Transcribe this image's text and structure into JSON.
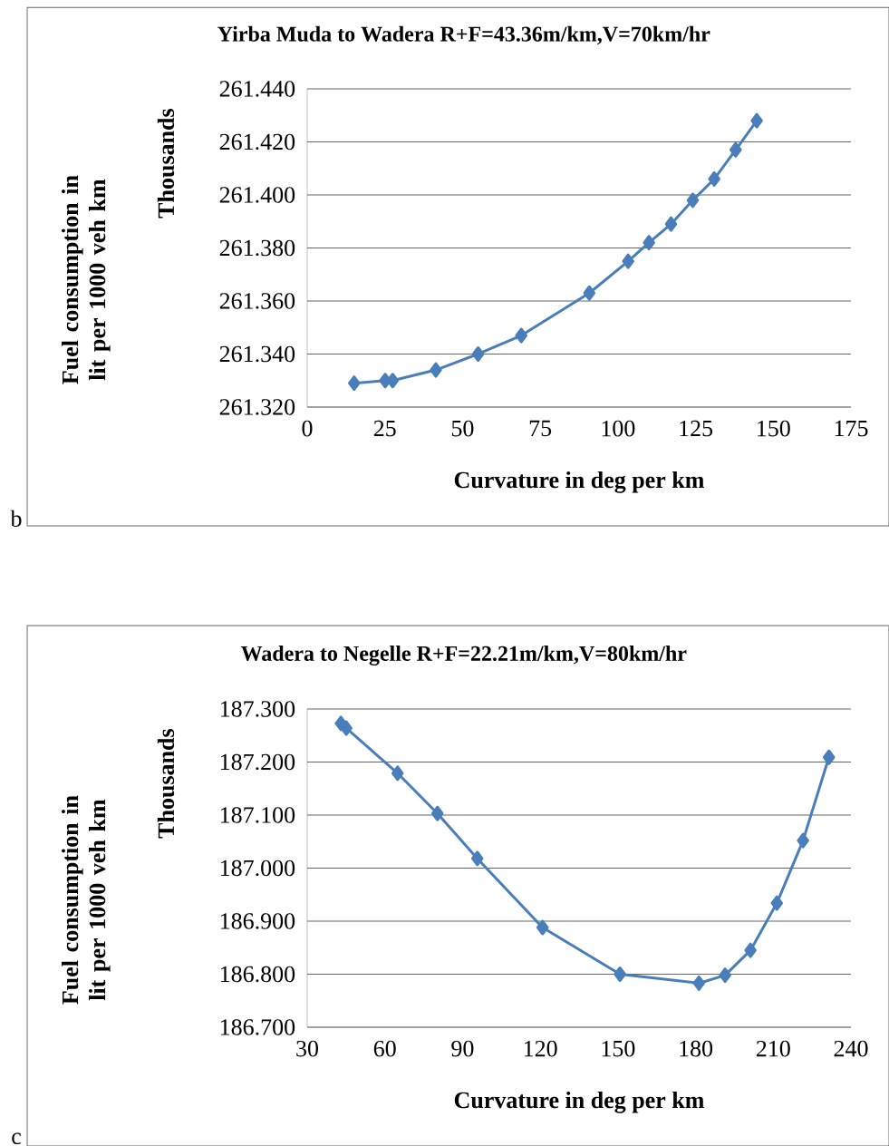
{
  "chart_data": [
    {
      "type": "line",
      "title": "Yirba Muda to Wadera R+F=43.36m/km,V=70km/hr",
      "xlabel": "Curvature in deg per km",
      "ylabel": "Fuel consumption in lit per 1000 veh km",
      "annotations": [
        "Thousands",
        "b"
      ],
      "x": [
        15.1,
        25.1,
        27.5,
        41.4,
        55.0,
        68.9,
        90.8,
        103.3,
        110.0,
        117.1,
        124.1,
        131.0,
        137.9,
        144.7
      ],
      "series": [
        {
          "color": "#4a7ebb",
          "values": [
            261.329,
            261.33,
            261.33,
            261.334,
            261.34,
            261.347,
            261.363,
            261.375,
            261.382,
            261.389,
            261.398,
            261.406,
            261.417,
            261.428
          ]
        }
      ],
      "xlim": [
        0,
        175
      ],
      "xticks": [
        0,
        25,
        50,
        75,
        100,
        125,
        150,
        175
      ],
      "ylim": [
        261.32,
        261.44
      ],
      "yticks": [
        {
          "value": 261.32,
          "label": "261.320"
        },
        {
          "value": 261.34,
          "label": "261.340"
        },
        {
          "value": 261.36,
          "label": "261.360"
        },
        {
          "value": 261.38,
          "label": "261.380"
        },
        {
          "value": 261.4,
          "label": "261.400"
        },
        {
          "value": 261.42,
          "label": "261.420"
        },
        {
          "value": 261.44,
          "label": "261.440"
        }
      ],
      "grid": "y",
      "marker": "diamond",
      "line_style": "solid"
    },
    {
      "type": "line",
      "title": "Wadera to Negelle R+F=22.21m/km,V=80km/hr",
      "xlabel": "Curvature in deg per km",
      "ylabel": "Fuel consumption in lit per 1000 veh km",
      "annotations": [
        "Thousands",
        "c"
      ],
      "x": [
        43.0,
        45.1,
        64.9,
        80.3,
        95.7,
        120.9,
        150.8,
        181.3,
        191.4,
        201.2,
        211.4,
        221.5,
        231.5
      ],
      "series": [
        {
          "color": "#4a7ebb",
          "values": [
            187.273,
            187.264,
            187.179,
            187.103,
            187.018,
            186.888,
            186.8,
            186.783,
            186.798,
            186.845,
            186.934,
            187.052,
            187.209
          ]
        }
      ],
      "xlim": [
        30,
        240
      ],
      "xticks": [
        30,
        60,
        90,
        120,
        150,
        180,
        210,
        240
      ],
      "ylim": [
        186.7,
        187.3
      ],
      "yticks": [
        {
          "value": 186.7,
          "label": "186.700"
        },
        {
          "value": 186.8,
          "label": "186.800"
        },
        {
          "value": 186.9,
          "label": "186.900"
        },
        {
          "value": 187.0,
          "label": "187.000"
        },
        {
          "value": 187.1,
          "label": "187.100"
        },
        {
          "value": 187.2,
          "label": "187.200"
        },
        {
          "value": 187.3,
          "label": "187.300"
        }
      ],
      "grid": "y",
      "marker": "diamond",
      "line_style": "solid"
    }
  ]
}
